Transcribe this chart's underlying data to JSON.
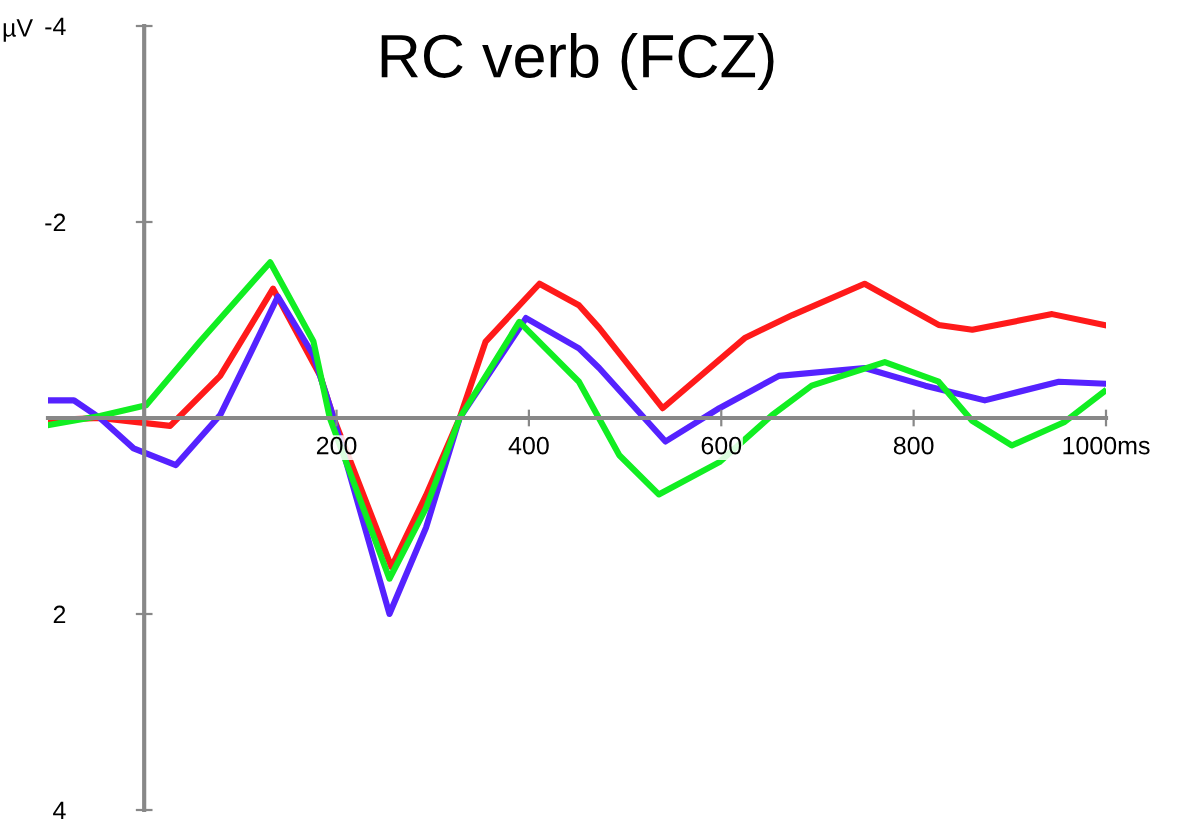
{
  "chart_data": {
    "type": "line",
    "title": "RC verb (FCZ)",
    "ylabel": "µV",
    "xlim": [
      -100,
      1000
    ],
    "ylim": [
      4,
      -4
    ],
    "xticks": [
      200,
      400,
      600,
      800,
      {
        "value": 1000,
        "label": "1000ms"
      }
    ],
    "yticks": [
      -4,
      -2,
      2,
      4
    ],
    "grid": false,
    "legend": false,
    "marker": "none",
    "line_style": "solid",
    "series": [
      {
        "color": "#ff1a1a",
        "x": [
          -98,
          -46,
          27,
          79,
          134,
          183,
          197,
          257,
          293,
          328,
          355,
          411,
          452,
          473,
          539,
          625,
          674,
          749,
          826,
          861,
          944,
          998
        ],
        "values": [
          0.02,
          0,
          0.08,
          -0.43,
          -1.32,
          -0.43,
          0,
          1.52,
          0.79,
          0,
          -0.78,
          -1.37,
          -1.15,
          -0.92,
          -0.1,
          -0.82,
          -1.05,
          -1.37,
          -0.95,
          -0.9,
          -1.06,
          -0.95
        ]
      },
      {
        "color": "#5522ff",
        "x": [
          -98,
          -73,
          -46,
          -11,
          33,
          79,
          113,
          139,
          176,
          197,
          255,
          293,
          328,
          397,
          452,
          473,
          542,
          598,
          660,
          749,
          812,
          874,
          951,
          998
        ],
        "values": [
          -0.18,
          -0.18,
          0,
          0.31,
          0.48,
          -0.03,
          -0.71,
          -1.24,
          -0.64,
          0,
          2.0,
          1.12,
          0,
          -1.02,
          -0.71,
          -0.51,
          0.24,
          -0.1,
          -0.43,
          -0.51,
          -0.33,
          -0.18,
          -0.37,
          -0.35
        ]
      },
      {
        "color": "#11ee22",
        "x": [
          -98,
          -46,
          2,
          58,
          131,
          176,
          193,
          255,
          293,
          328,
          390,
          452,
          494,
          535,
          598,
          653,
          694,
          770,
          826,
          861,
          902,
          957,
          998
        ],
        "values": [
          0.07,
          -0.02,
          -0.13,
          -0.78,
          -1.59,
          -0.78,
          0,
          1.64,
          0.92,
          0,
          -0.98,
          -0.37,
          0.38,
          0.78,
          0.45,
          -0.03,
          -0.33,
          -0.57,
          -0.37,
          0.03,
          0.28,
          0.04,
          -0.27
        ]
      }
    ]
  }
}
